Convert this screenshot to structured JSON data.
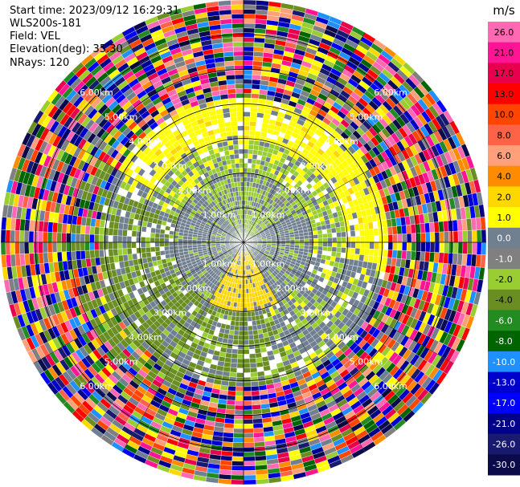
{
  "header": {
    "start_time": "Start time: 2023/09/12 16:29:31",
    "instrument": "WLS200s-181",
    "field": "Field: VEL",
    "elevation": "Elevation(deg): 35.30",
    "nrays": "NRays: 120"
  },
  "chart_data": {
    "type": "heatmap",
    "projection": "polar PPI",
    "field": "VEL",
    "units": "m/s",
    "n_rays": 120,
    "range_rings_km": [
      1.0,
      2.0,
      3.0,
      4.0,
      5.0,
      6.0
    ],
    "ring_labels": [
      "1.00km",
      "2.00km",
      "3.00km",
      "4.00km",
      "5.00km",
      "6.00km"
    ],
    "max_range_km": 7.0,
    "colorbar_ticks": [
      "26.0",
      "21.0",
      "17.0",
      "13.0",
      "10.0",
      "8.0",
      "6.0",
      "4.0",
      "2.0",
      "1.0",
      "0.0",
      "-1.0",
      "-2.0",
      "-4.0",
      "-6.0",
      "-8.0",
      "-10.0",
      "-13.0",
      "-17.0",
      "-21.0",
      "-26.0",
      "-30.0"
    ],
    "colorbar_colors": [
      "#ff69b4",
      "#ff1493",
      "#e8004f",
      "#ff0000",
      "#ff4500",
      "#ff6347",
      "#ffa07a",
      "#ff8c00",
      "#ffd700",
      "#ffff00",
      "#708090",
      "#808080",
      "#9acd32",
      "#6b8e23",
      "#228b22",
      "#006400",
      "#1e90ff",
      "#0000cd",
      "#0000ff",
      "#00008b",
      "#191970",
      "#0b0b4b"
    ],
    "pattern": "near-zero velocities (grey) inside ~2 km, yellow/positive band to the N-NE, olive/negative band to the S-SW, noisy random colors beyond ~4 km"
  }
}
